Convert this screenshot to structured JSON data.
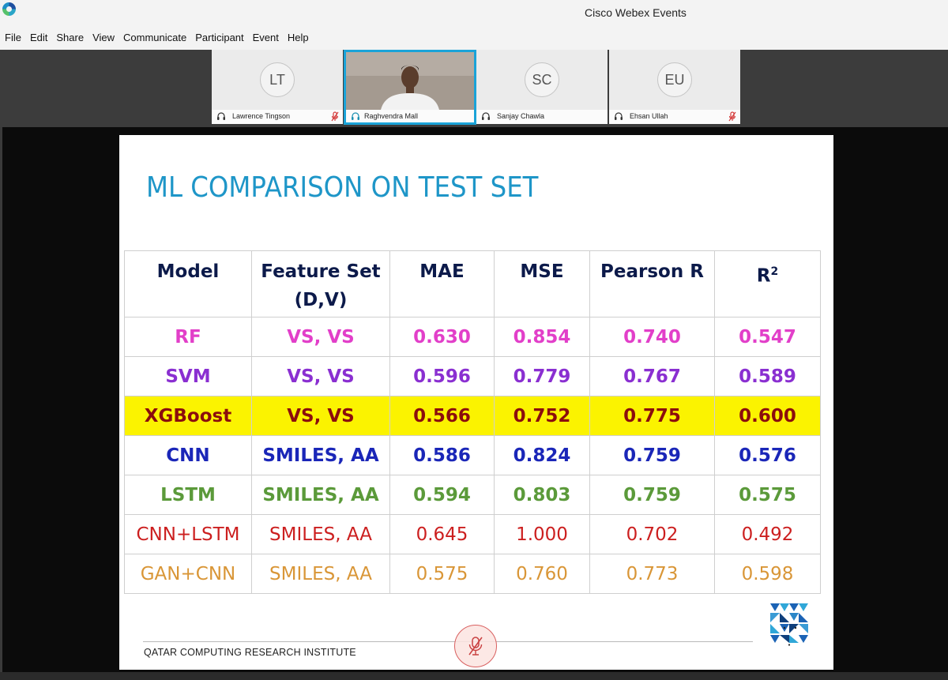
{
  "window": {
    "title": "Cisco Webex Events"
  },
  "menu": [
    "File",
    "Edit",
    "Share",
    "View",
    "Communicate",
    "Participant",
    "Event",
    "Help"
  ],
  "participants": [
    {
      "initials": "LT",
      "name": "Lawrence Tingson",
      "muted": true
    },
    {
      "initials": "",
      "name": "Raghvendra Mall",
      "muted": false,
      "active_speaker": true
    },
    {
      "initials": "SC",
      "name": "Sanjay Chawla",
      "muted": false
    },
    {
      "initials": "EU",
      "name": "Ehsan Ullah",
      "muted": true
    }
  ],
  "slide": {
    "title": "ML COMPARISON ON TEST SET",
    "footer": "QATAR COMPUTING RESEARCH INSTITUTE",
    "table": {
      "headers": [
        {
          "line1": "Model",
          "line2": ""
        },
        {
          "line1": "Feature Set",
          "line2": "(D,V)"
        },
        {
          "line1": "MAE",
          "line2": ""
        },
        {
          "line1": "MSE",
          "line2": ""
        },
        {
          "line1": "Pearson R",
          "line2": ""
        },
        {
          "line1": "R",
          "sup": "2"
        }
      ],
      "rows": [
        {
          "model": "RF",
          "features": "VS, VS",
          "mae": "0.630",
          "mse": "0.854",
          "pearson": "0.740",
          "r2": "0.547",
          "color": "#e23fc9"
        },
        {
          "model": "SVM",
          "features": "VS, VS",
          "mae": "0.596",
          "mse": "0.779",
          "pearson": "0.767",
          "r2": "0.589",
          "color": "#8a2fd1"
        },
        {
          "model": "XGBoost",
          "features": "VS, VS",
          "mae": "0.566",
          "mse": "0.752",
          "pearson": "0.775",
          "r2": "0.600",
          "color": "#8b0d0d",
          "highlight": "#fbf300"
        },
        {
          "model": "CNN",
          "features": "SMILES, AA",
          "mae": "0.586",
          "mse": "0.824",
          "pearson": "0.759",
          "r2": "0.576",
          "color": "#1a26b8"
        },
        {
          "model": "LSTM",
          "features": "SMILES, AA",
          "mae": "0.594",
          "mse": "0.803",
          "pearson": "0.759",
          "r2": "0.575",
          "color": "#5b9a3a"
        },
        {
          "model": "CNN+LSTM",
          "features": "SMILES, AA",
          "mae": "0.645",
          "mse": "1.000",
          "pearson": "0.702",
          "r2": "0.492",
          "color": "#cc1f1f"
        },
        {
          "model": "GAN+CNN",
          "features": "SMILES, AA",
          "mae": "0.575",
          "mse": "0.760",
          "pearson": "0.773",
          "r2": "0.598",
          "color": "#d99637"
        }
      ]
    }
  },
  "colors": {
    "accent": "#1aa3d8",
    "title": "#1e96c8",
    "header_text": "#0c1a4a",
    "mute_red": "#d96060"
  }
}
